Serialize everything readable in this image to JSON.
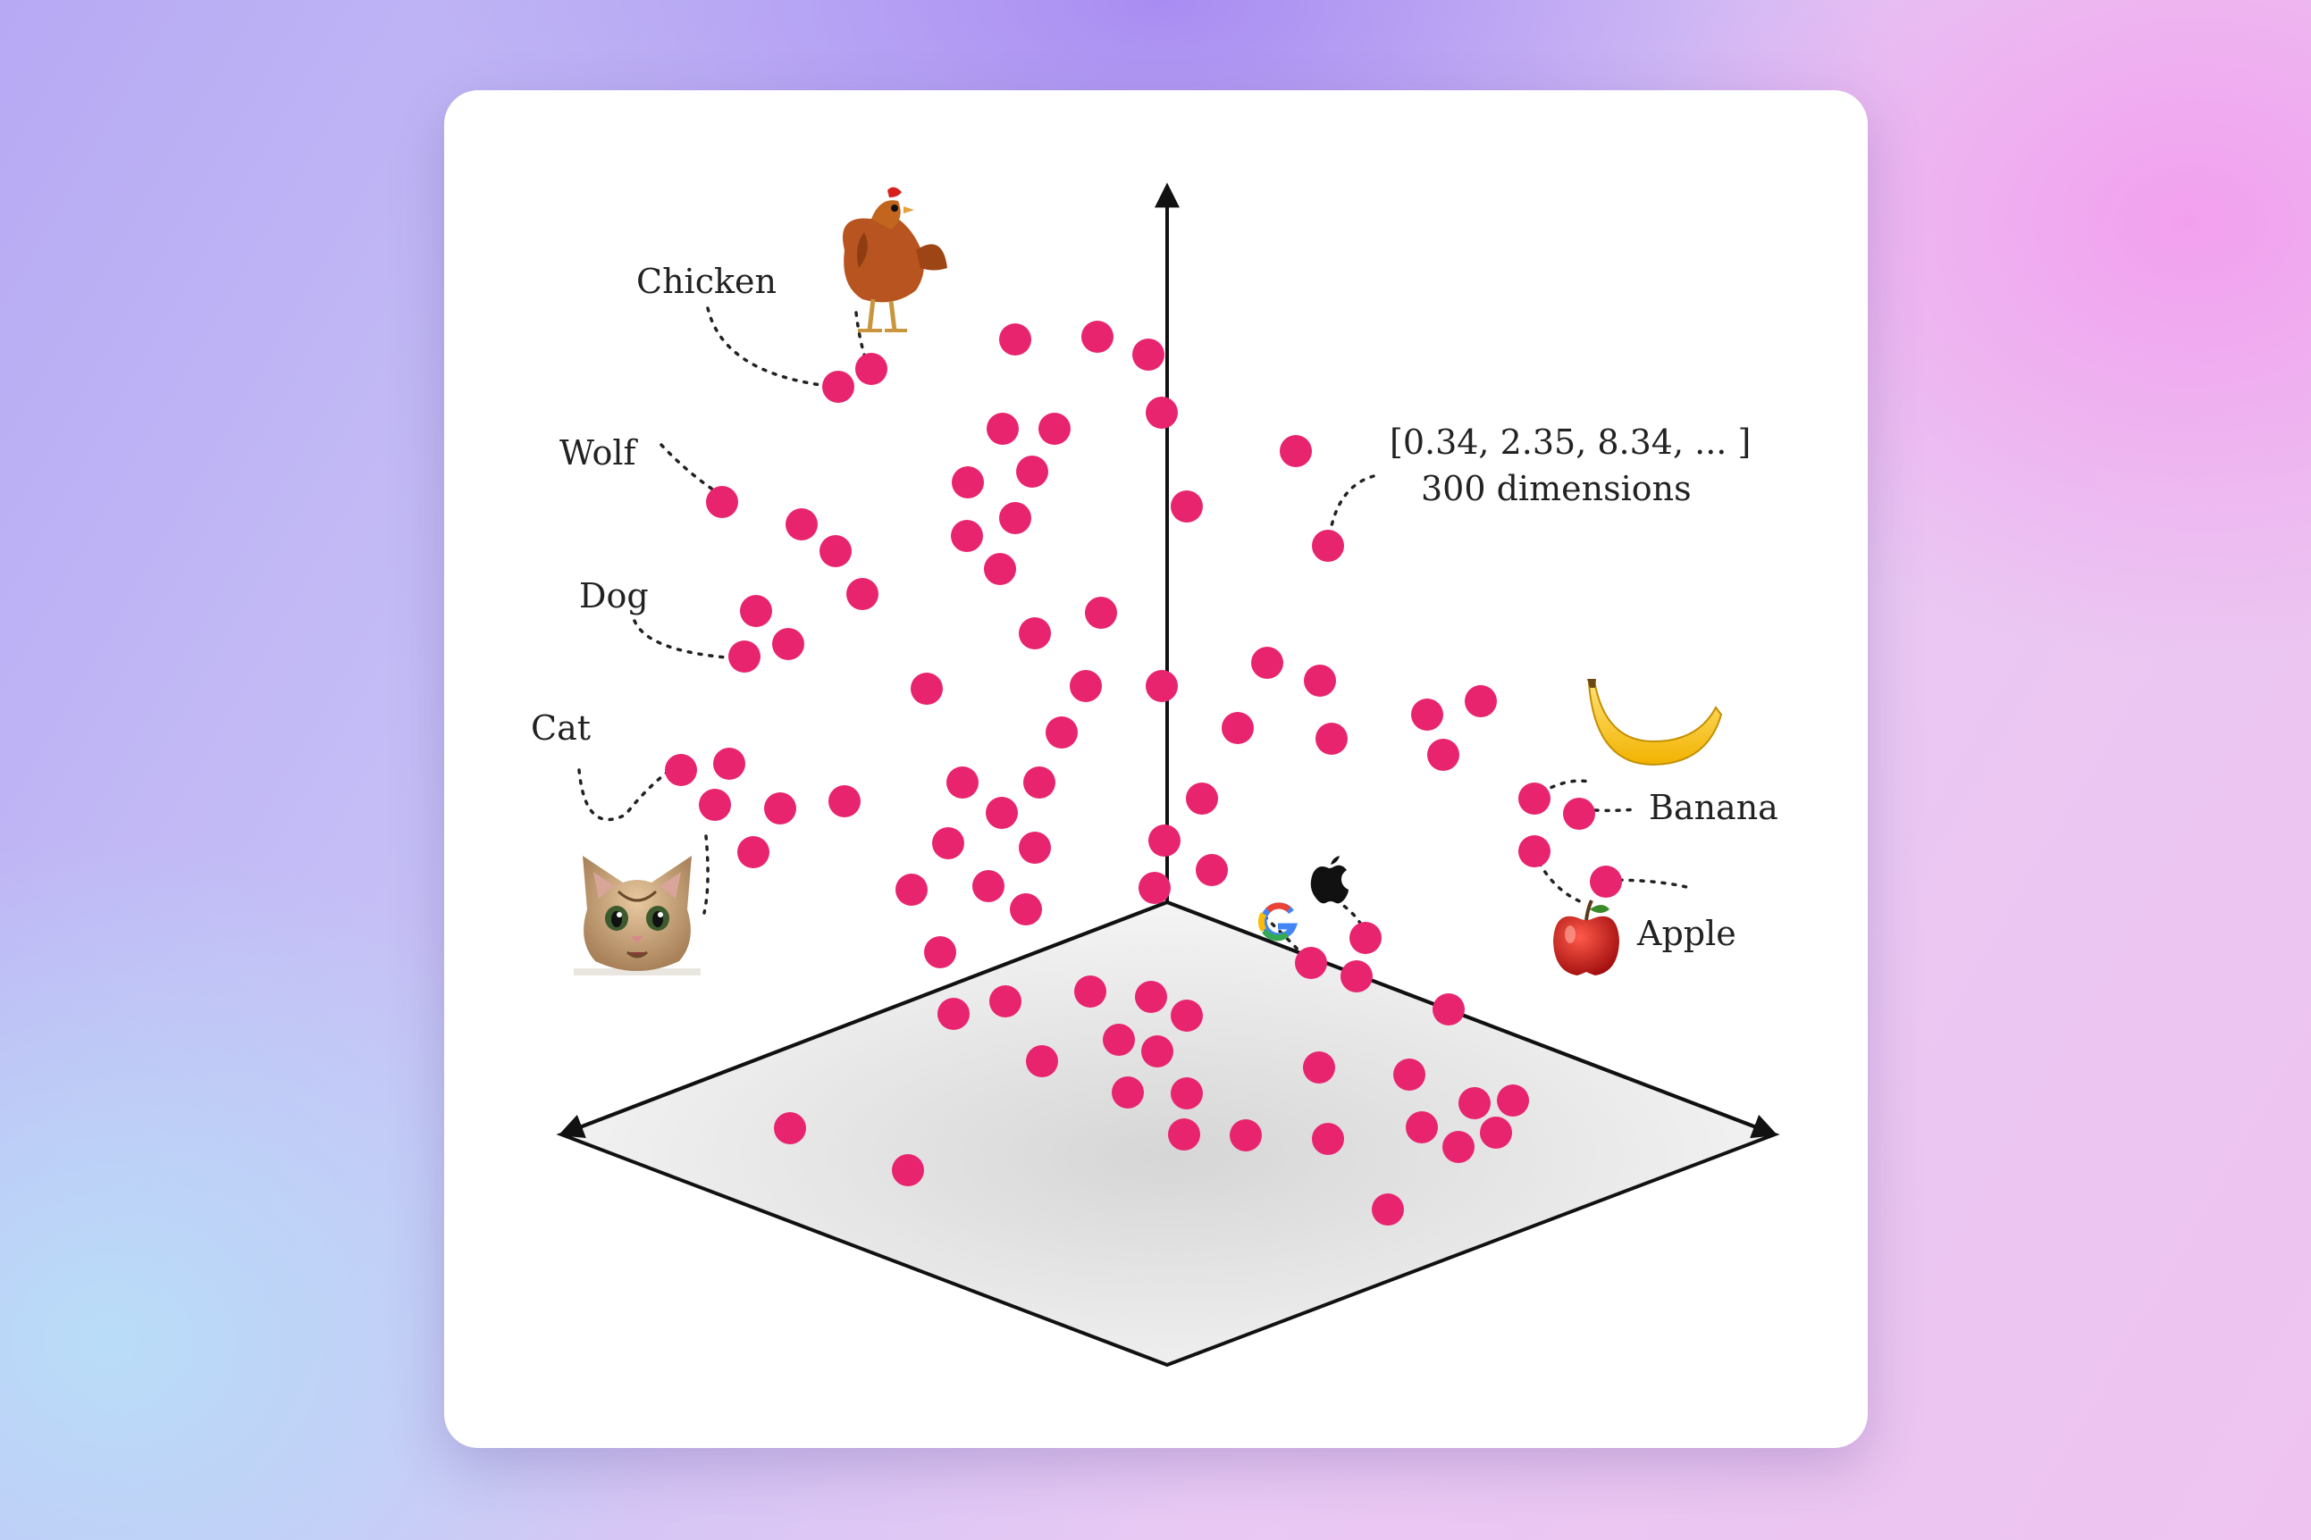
{
  "labels": {
    "chicken": "Chicken",
    "wolf": "Wolf",
    "dog": "Dog",
    "cat": "Cat",
    "banana": "Banana",
    "apple": "Apple",
    "vector": "[0.34, 2.35, 8.34, ... ]",
    "dimensions": "300 dimensions"
  },
  "icons": {
    "chicken": "chicken-icon",
    "cat": "cat-icon",
    "banana": "banana-icon",
    "apple": "apple-icon",
    "google": "google-logo-icon",
    "apple_logo": "apple-logo-icon"
  },
  "colors": {
    "point": "#e8246f",
    "axis": "#111111",
    "plane": "#d9d9d9",
    "card": "#ffffff"
  }
}
